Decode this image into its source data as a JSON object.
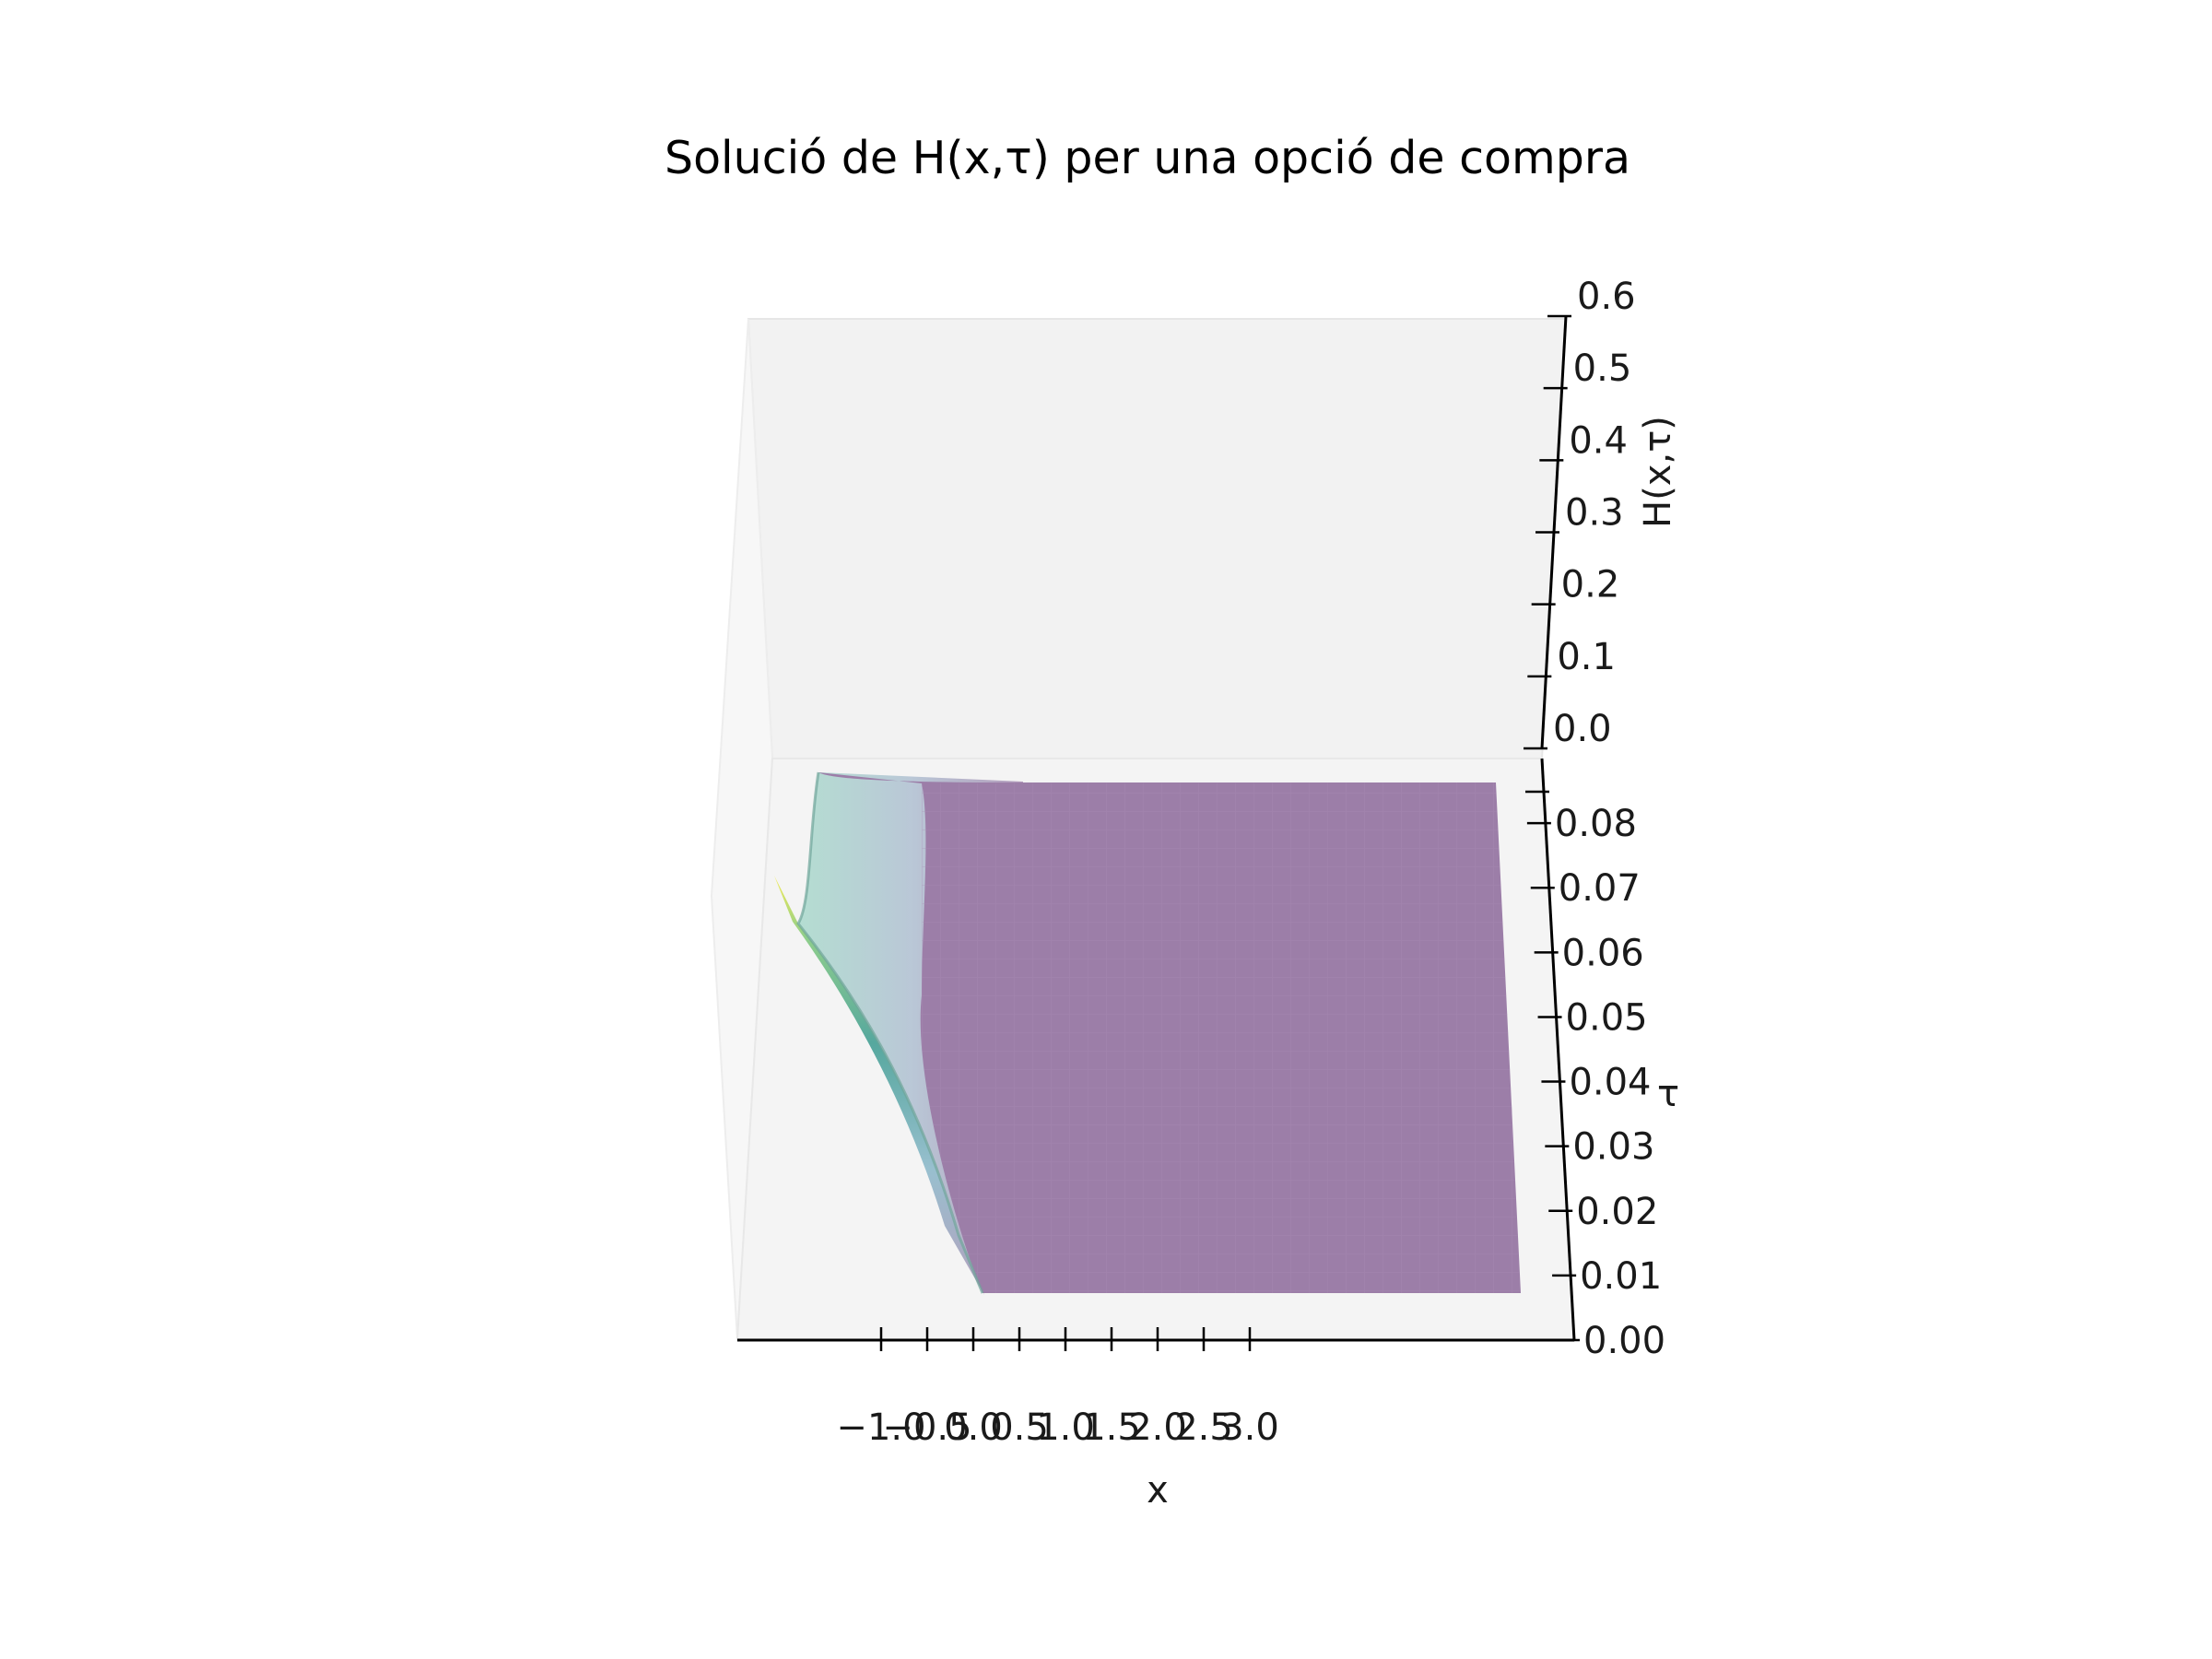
{
  "chart_data": {
    "type": "surface",
    "title": "Solució de H(x,τ) per una opció de compra",
    "xlabel": "x",
    "ylabel": "τ",
    "zlabel": "H(x,τ)",
    "x_ticks": [
      "−1.0",
      "−0.5",
      "0.0",
      "0.5",
      "1.0",
      "1.5",
      "2.0",
      "2.5",
      "3.0"
    ],
    "tau_ticks": [
      "0.00",
      "0.01",
      "0.02",
      "0.03",
      "0.04",
      "0.05",
      "0.06",
      "0.07",
      "0.08"
    ],
    "z_ticks": [
      "0.0",
      "0.1",
      "0.2",
      "0.3",
      "0.4",
      "0.5",
      "0.6"
    ],
    "xlim": [
      -1.25,
      3.25
    ],
    "tau_lim": [
      0,
      0.09
    ],
    "zlim": [
      0,
      0.6
    ],
    "colormap": "viridis",
    "surface_alpha": 0.5,
    "surface_color": "#9c7ea8",
    "surface_x_range": [
      -1.0,
      3.0
    ],
    "surface_tau_range": [
      0.005,
      0.085
    ],
    "left_edge_profile": {
      "x": [
        -1.0,
        -0.75,
        -0.5,
        -0.25,
        0.0
      ],
      "tau": [
        0.085,
        0.07,
        0.05,
        0.02,
        0.005
      ],
      "H": [
        0.12,
        0.05,
        0.02,
        0.005,
        0.0
      ]
    }
  }
}
